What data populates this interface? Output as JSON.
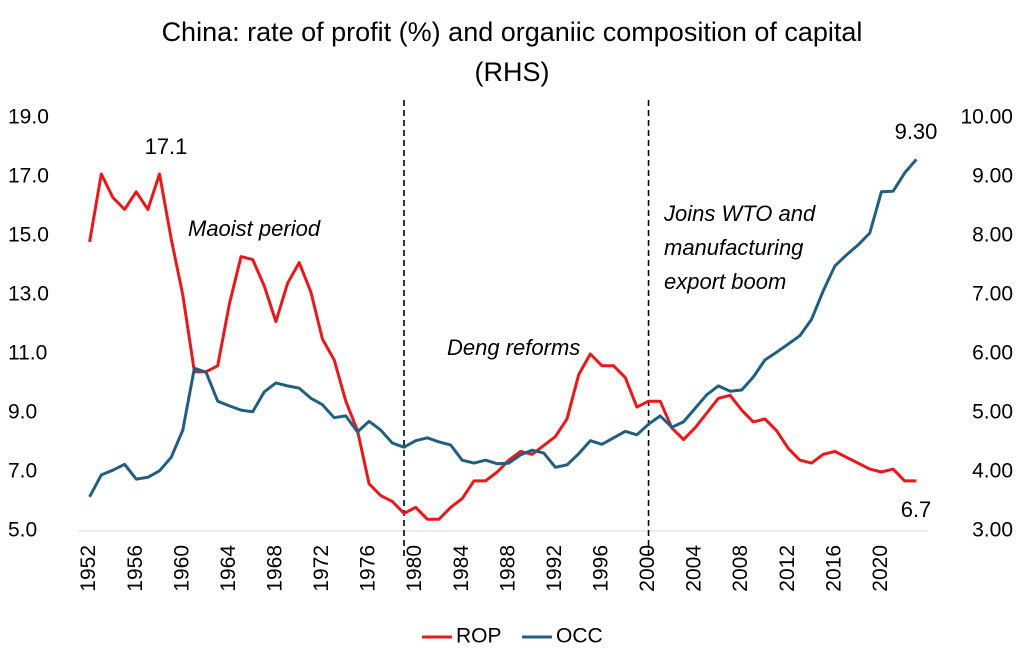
{
  "chart_data": {
    "type": "line",
    "title": [
      "China: rate of profit (%) and organiic composition of capital",
      "(RHS)"
    ],
    "x": [
      1952,
      1953,
      1954,
      1955,
      1956,
      1957,
      1958,
      1959,
      1960,
      1961,
      1962,
      1963,
      1964,
      1965,
      1966,
      1967,
      1968,
      1969,
      1970,
      1971,
      1972,
      1973,
      1974,
      1975,
      1976,
      1977,
      1978,
      1979,
      1980,
      1981,
      1982,
      1983,
      1984,
      1985,
      1986,
      1987,
      1988,
      1989,
      1990,
      1991,
      1992,
      1993,
      1994,
      1995,
      1996,
      1997,
      1998,
      1999,
      2000,
      2001,
      2002,
      2003,
      2004,
      2005,
      2006,
      2007,
      2008,
      2009,
      2010,
      2011,
      2012,
      2013,
      2014,
      2015,
      2016,
      2017,
      2018,
      2019,
      2020,
      2021,
      2022,
      2023
    ],
    "series": [
      {
        "name": "ROP",
        "color": "#e8191a",
        "axis": "y",
        "values": [
          14.8,
          17.1,
          16.3,
          15.9,
          16.5,
          15.9,
          17.1,
          14.9,
          13.0,
          10.4,
          10.4,
          10.6,
          12.7,
          14.3,
          14.2,
          13.3,
          12.1,
          13.4,
          14.1,
          13.1,
          11.5,
          10.8,
          9.4,
          8.4,
          6.6,
          6.2,
          6.0,
          5.6,
          5.8,
          5.4,
          5.4,
          5.8,
          6.1,
          6.7,
          6.7,
          7.0,
          7.4,
          7.7,
          7.6,
          7.9,
          8.2,
          8.8,
          10.3,
          11.0,
          10.6,
          10.6,
          10.2,
          9.2,
          9.4,
          9.4,
          8.5,
          8.1,
          8.5,
          9.0,
          9.5,
          9.6,
          9.1,
          8.7,
          8.8,
          8.4,
          7.8,
          7.4,
          7.3,
          7.6,
          7.7,
          7.5,
          7.3,
          7.1,
          7.0,
          7.1,
          6.7,
          6.7
        ]
      },
      {
        "name": "OCC",
        "color": "#215f81",
        "axis": "y2",
        "values": [
          3.58,
          3.95,
          4.03,
          4.13,
          3.88,
          3.91,
          4.02,
          4.25,
          4.71,
          5.76,
          5.69,
          5.2,
          5.12,
          5.05,
          5.02,
          5.36,
          5.51,
          5.46,
          5.42,
          5.25,
          5.14,
          4.92,
          4.95,
          4.68,
          4.86,
          4.71,
          4.49,
          4.42,
          4.53,
          4.58,
          4.51,
          4.46,
          4.2,
          4.15,
          4.2,
          4.14,
          4.15,
          4.29,
          4.37,
          4.32,
          4.08,
          4.12,
          4.31,
          4.53,
          4.47,
          4.58,
          4.69,
          4.63,
          4.81,
          4.95,
          4.76,
          4.85,
          5.08,
          5.31,
          5.46,
          5.37,
          5.39,
          5.61,
          5.9,
          6.03,
          6.17,
          6.31,
          6.59,
          7.07,
          7.49,
          7.68,
          7.85,
          8.05,
          8.75,
          8.76,
          9.07,
          9.3
        ]
      }
    ],
    "xlim": [
      1951,
      2024
    ],
    "xticks": [
      1952,
      1956,
      1960,
      1964,
      1968,
      1972,
      1976,
      1980,
      1984,
      1988,
      1992,
      1996,
      2000,
      2004,
      2008,
      2012,
      2016,
      2020
    ],
    "ylim": [
      5,
      19
    ],
    "yticks": [
      {
        "value": 5,
        "label": "5.0"
      },
      {
        "value": 7,
        "label": "7.0"
      },
      {
        "value": 9,
        "label": "9.0"
      },
      {
        "value": 11,
        "label": "11.0"
      },
      {
        "value": 13,
        "label": "13.0"
      },
      {
        "value": 15,
        "label": "15.0"
      },
      {
        "value": 17,
        "label": "17.0"
      },
      {
        "value": 19,
        "label": "19.0"
      }
    ],
    "y2lim": [
      3,
      10
    ],
    "y2ticks": [
      {
        "value": 3,
        "label": "3.00"
      },
      {
        "value": 4,
        "label": "4.00"
      },
      {
        "value": 5,
        "label": "5.00"
      },
      {
        "value": 6,
        "label": "6.00"
      },
      {
        "value": 7,
        "label": "7.00"
      },
      {
        "value": 8,
        "label": "8.00"
      },
      {
        "value": 9,
        "label": "9.00"
      },
      {
        "value": 10,
        "label": "10.00"
      }
    ],
    "vlines": [
      1979,
      2000
    ],
    "annotations": [
      "17.1",
      "9.30",
      "6.7",
      "Maoist period",
      "Deng reforms",
      [
        "Joins WTO and",
        "manufacturing",
        "export boom"
      ]
    ],
    "legend": "bottom"
  }
}
